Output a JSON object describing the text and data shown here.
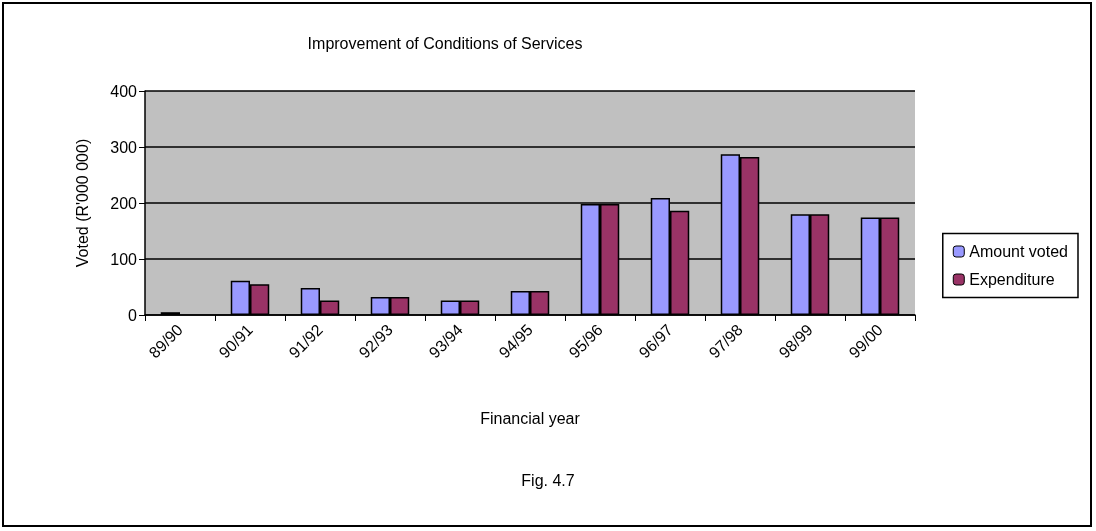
{
  "chart_data": {
    "type": "bar",
    "title": "Improvement of Conditions of Services",
    "xlabel": "Financial year",
    "ylabel": "Voted (R'000 000)",
    "annotations": [
      "Fig. 4.7"
    ],
    "categories": [
      "89/90",
      "90/91",
      "91/92",
      "92/93",
      "93/94",
      "94/95",
      "95/96",
      "96/97",
      "97/98",
      "98/99",
      "99/00"
    ],
    "series": [
      {
        "name": "Amount voted",
        "color": "#9999ff",
        "values": [
          5,
          61,
          48,
          32,
          26,
          43,
          198,
          209,
          287,
          180,
          174
        ]
      },
      {
        "name": "Expenditure",
        "color": "#993366",
        "values": [
          null,
          55,
          26,
          32,
          26,
          43,
          198,
          186,
          282,
          180,
          174
        ]
      }
    ],
    "ylim": [
      0,
      400
    ],
    "yticks": [
      0,
      100,
      200,
      300,
      400
    ],
    "grid": "y",
    "legend": "right"
  }
}
